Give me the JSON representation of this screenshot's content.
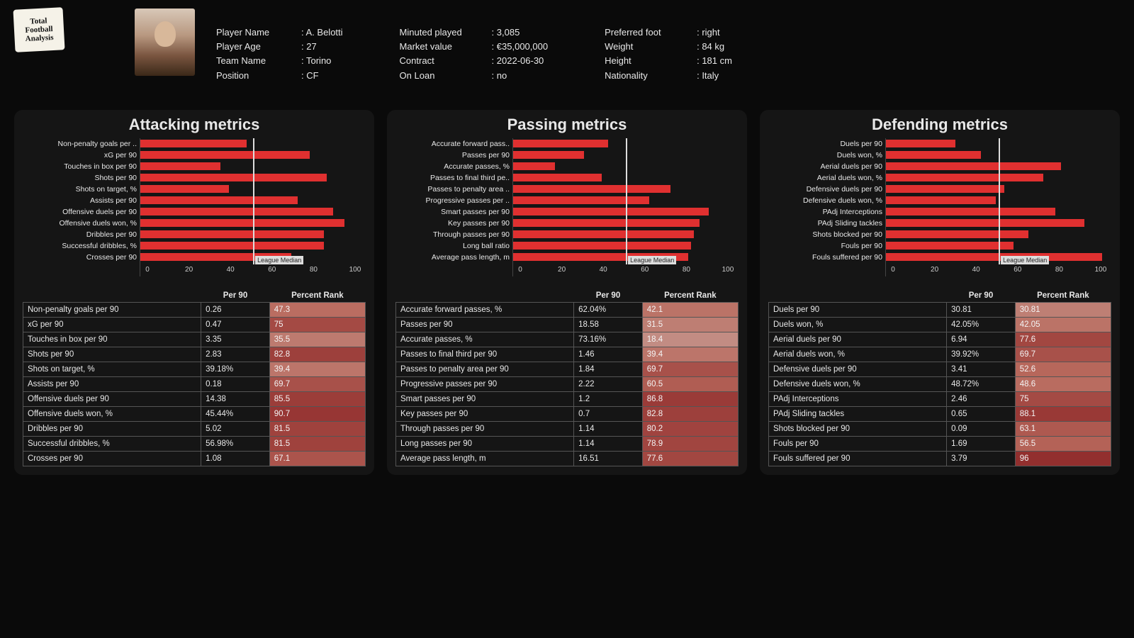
{
  "logo_lines": [
    "Total",
    "Football",
    "Analysis"
  ],
  "player": {
    "name_label": "Player Name",
    "name": "A. Belotti",
    "age_label": "Player Age",
    "age": "27",
    "team_label": "Team Name",
    "team": "Torino",
    "pos_label": "Position",
    "pos": "CF"
  },
  "stats1": {
    "minutes_label": "Minuted played",
    "minutes": "3,085",
    "mv_label": "Market value",
    "mv": "€35,000,000",
    "contract_label": "Contract",
    "contract": "2022-06-30",
    "loan_label": "On Loan",
    "loan": "no"
  },
  "stats2": {
    "foot_label": "Preferred foot",
    "foot": "right",
    "weight_label": "Weight",
    "weight": "84 kg",
    "height_label": "Height",
    "height": "181 cm",
    "nat_label": "Nationality",
    "nat": "Italy"
  },
  "chart_style": {
    "bar_color": "#e03030",
    "xlim": [
      0,
      100
    ],
    "xticks": [
      0,
      20,
      40,
      60,
      80,
      100
    ],
    "median_value": 50,
    "median_label": "League Median",
    "panel_bg": "#151515",
    "page_bg": "#0a0a0a"
  },
  "rank_color_scale": {
    "low": "#c7a098",
    "mid": "#b96a5e",
    "high": "#8f2a2a"
  },
  "panels": [
    {
      "title": "Attacking metrics",
      "col_per90": "Per 90",
      "col_rank": "Percent Rank",
      "rows": [
        {
          "label": "Non-penalty goals per ..",
          "full": "Non-penalty goals per 90",
          "per90": "0.26",
          "rank": 47.3
        },
        {
          "label": "xG per 90",
          "full": "xG per 90",
          "per90": "0.47",
          "rank": 75
        },
        {
          "label": "Touches in box per 90",
          "full": "Touches in box per 90",
          "per90": "3.35",
          "rank": 35.5
        },
        {
          "label": "Shots per 90",
          "full": "Shots per 90",
          "per90": "2.83",
          "rank": 82.8
        },
        {
          "label": "Shots on target, %",
          "full": "Shots on target, %",
          "per90": "39.18%",
          "rank": 39.4
        },
        {
          "label": "Assists per 90",
          "full": "Assists per 90",
          "per90": "0.18",
          "rank": 69.7
        },
        {
          "label": "Offensive duels per 90",
          "full": "Offensive duels per 90",
          "per90": "14.38",
          "rank": 85.5
        },
        {
          "label": "Offensive duels won, %",
          "full": "Offensive duels won, %",
          "per90": "45.44%",
          "rank": 90.7
        },
        {
          "label": "Dribbles per 90",
          "full": "Dribbles per 90",
          "per90": "5.02",
          "rank": 81.5
        },
        {
          "label": "Successful dribbles, %",
          "full": "Successful dribbles, %",
          "per90": "56.98%",
          "rank": 81.5
        },
        {
          "label": "Crosses per 90",
          "full": "Crosses per 90",
          "per90": "1.08",
          "rank": 67.1
        }
      ]
    },
    {
      "title": "Passing metrics",
      "col_per90": "Per 90",
      "col_rank": "Percent Rank",
      "rows": [
        {
          "label": "Accurate forward pass..",
          "full": "Accurate forward passes, %",
          "per90": "62.04%",
          "rank": 42.1
        },
        {
          "label": "Passes per 90",
          "full": "Passes per 90",
          "per90": "18.58",
          "rank": 31.5
        },
        {
          "label": "Accurate passes, %",
          "full": "Accurate passes, %",
          "per90": "73.16%",
          "rank": 18.4
        },
        {
          "label": "Passes to final third pe..",
          "full": "Passes to final third per 90",
          "per90": "1.46",
          "rank": 39.4
        },
        {
          "label": "Passes to penalty area ..",
          "full": "Passes to penalty area per 90",
          "per90": "1.84",
          "rank": 69.7
        },
        {
          "label": "Progressive passes per ..",
          "full": "Progressive passes per 90",
          "per90": "2.22",
          "rank": 60.5
        },
        {
          "label": "Smart passes per 90",
          "full": "Smart passes per 90",
          "per90": "1.2",
          "rank": 86.8
        },
        {
          "label": "Key passes per 90",
          "full": "Key passes per 90",
          "per90": "0.7",
          "rank": 82.8
        },
        {
          "label": "Through passes per 90",
          "full": "Through passes per 90",
          "per90": "1.14",
          "rank": 80.2
        },
        {
          "label": "Long ball ratio",
          "full": "Long passes per 90",
          "per90": "1.14",
          "rank": 78.9
        },
        {
          "label": "Average pass length, m",
          "full": "Average pass length, m",
          "per90": "16.51",
          "rank": 77.6
        }
      ]
    },
    {
      "title": "Defending metrics",
      "col_per90": "Per 90",
      "col_rank": "Percent Rank",
      "rows": [
        {
          "label": "Duels per 90",
          "full": "Duels per 90",
          "per90": "30.81",
          "rank": 30.81
        },
        {
          "label": "Duels won, %",
          "full": "Duels won, %",
          "per90": "42.05%",
          "rank": 42.05
        },
        {
          "label": "Aerial duels per 90",
          "full": "Aerial duels per 90",
          "per90": "6.94",
          "rank": 77.6
        },
        {
          "label": "Aerial duels won, %",
          "full": "Aerial duels won, %",
          "per90": "39.92%",
          "rank": 69.7
        },
        {
          "label": "Defensive duels per 90",
          "full": "Defensive duels per 90",
          "per90": "3.41",
          "rank": 52.6
        },
        {
          "label": "Defensive duels won, %",
          "full": "Defensive duels won, %",
          "per90": "48.72%",
          "rank": 48.6
        },
        {
          "label": "PAdj Interceptions",
          "full": "PAdj Interceptions",
          "per90": "2.46",
          "rank": 75.0
        },
        {
          "label": "PAdj Sliding tackles",
          "full": "PAdj Sliding tackles",
          "per90": "0.65",
          "rank": 88.1
        },
        {
          "label": "Shots blocked per 90",
          "full": "Shots blocked per 90",
          "per90": "0.09",
          "rank": 63.1
        },
        {
          "label": "Fouls per 90",
          "full": "Fouls per 90",
          "per90": "1.69",
          "rank": 56.5
        },
        {
          "label": "Fouls suffered per 90",
          "full": "Fouls suffered per 90",
          "per90": "3.79",
          "rank": 96.0
        }
      ]
    }
  ]
}
